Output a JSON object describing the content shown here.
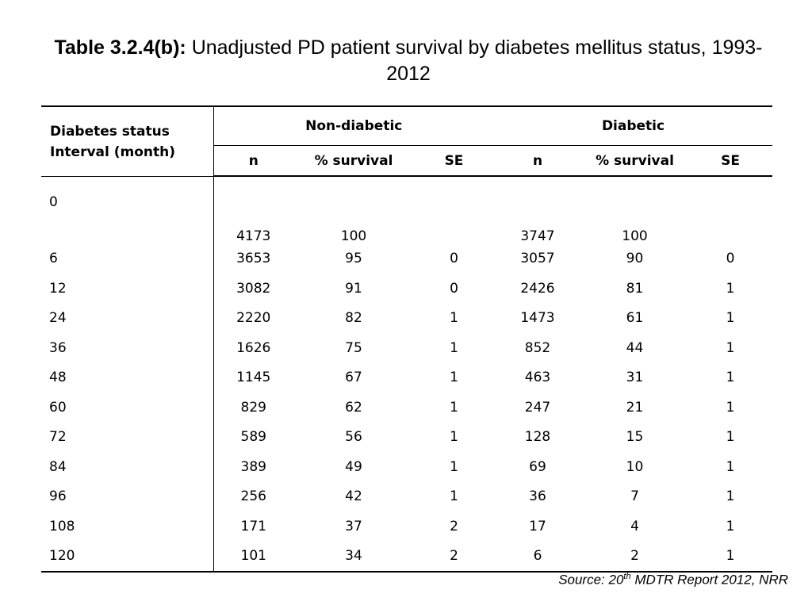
{
  "title": {
    "prefix": "Table 3.2.4(b):",
    "text": "Unadjusted PD patient survival by diabetes mellitus status, 1993-2012"
  },
  "table": {
    "row_header": [
      "Diabetes status",
      "Interval (month)"
    ],
    "groups": [
      "Non-diabetic",
      "Diabetic"
    ],
    "subheaders": [
      "n",
      "% survival",
      "SE",
      "n",
      "% survival",
      "SE"
    ],
    "rows": [
      [
        "0",
        "4173",
        "100",
        "",
        "3747",
        "100",
        ""
      ],
      [
        "6",
        "3653",
        "95",
        "0",
        "3057",
        "90",
        "0"
      ],
      [
        "12",
        "3082",
        "91",
        "0",
        "2426",
        "81",
        "1"
      ],
      [
        "24",
        "2220",
        "82",
        "1",
        "1473",
        "61",
        "1"
      ],
      [
        "36",
        "1626",
        "75",
        "1",
        "852",
        "44",
        "1"
      ],
      [
        "48",
        "1145",
        "67",
        "1",
        "463",
        "31",
        "1"
      ],
      [
        "60",
        "829",
        "62",
        "1",
        "247",
        "21",
        "1"
      ],
      [
        "72",
        "589",
        "56",
        "1",
        "128",
        "15",
        "1"
      ],
      [
        "84",
        "389",
        "49",
        "1",
        "69",
        "10",
        "1"
      ],
      [
        "96",
        "256",
        "42",
        "1",
        "36",
        "7",
        "1"
      ],
      [
        "108",
        "171",
        "37",
        "2",
        "17",
        "4",
        "1"
      ],
      [
        "120",
        "101",
        "34",
        "2",
        "6",
        "2",
        "1"
      ]
    ]
  },
  "source": {
    "prefix": "Source: 20",
    "sup": "th",
    "suffix": " MDTR Report 2012, NRR"
  }
}
